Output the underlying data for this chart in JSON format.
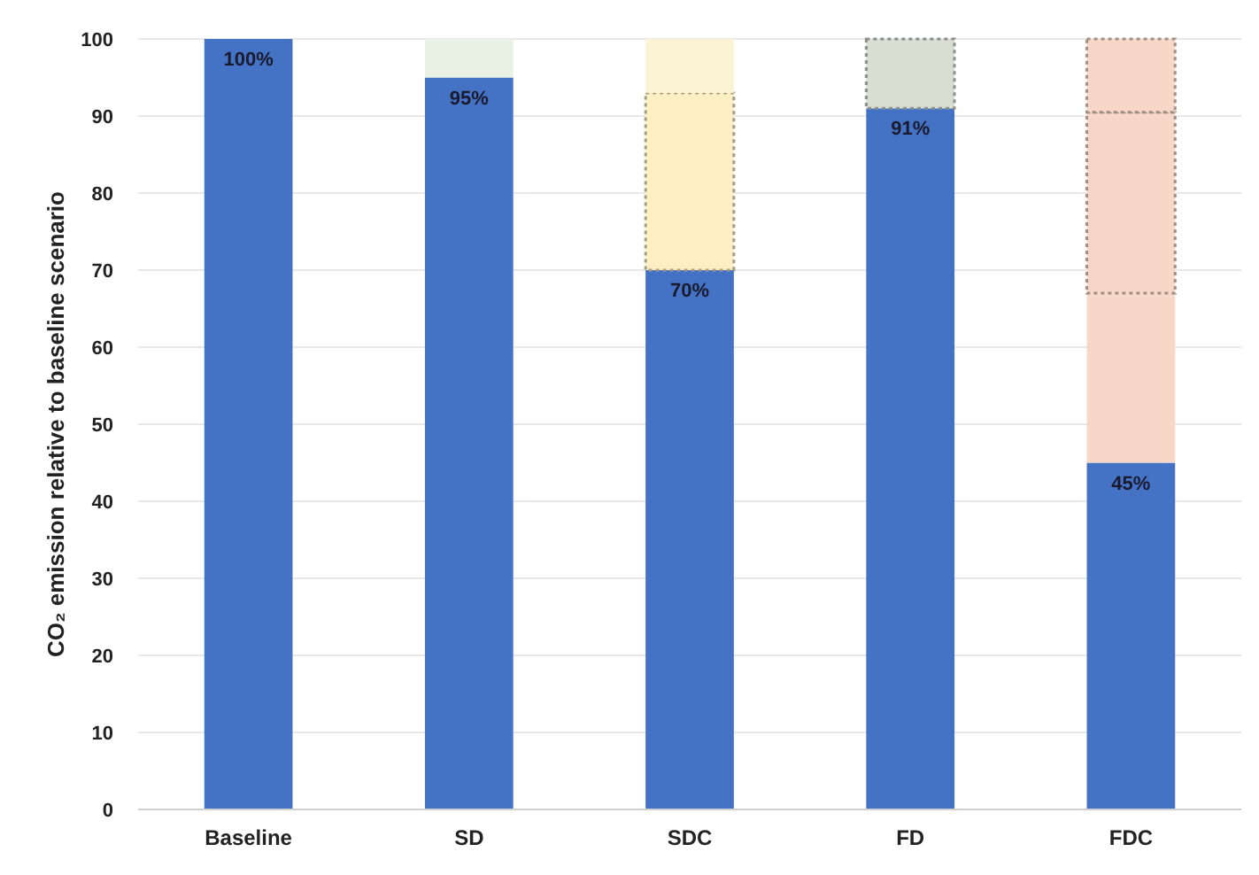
{
  "chart_data": {
    "type": "bar",
    "stacked": true,
    "ylabel": "CO₂ emission relative to baseline scenario",
    "categories": [
      "Baseline",
      "SD",
      "SDC",
      "FD",
      "FDC"
    ],
    "ylim": [
      0,
      100
    ],
    "yticks": [
      0,
      10,
      20,
      30,
      40,
      50,
      60,
      70,
      80,
      90,
      100
    ],
    "grid": "y",
    "series": [
      {
        "color": "#4472c4",
        "values": [
          100,
          95,
          70,
          91,
          45
        ],
        "value_labels": [
          "100%",
          "95%",
          "70%",
          "91%",
          "45%"
        ]
      },
      {
        "colors": [
          null,
          null,
          null,
          null,
          "#f7d8c8"
        ],
        "values": [
          null,
          null,
          null,
          null,
          22
        ]
      },
      {
        "colors": [
          null,
          null,
          "#fcefc4",
          null,
          "#f7d8c8"
        ],
        "values": [
          null,
          null,
          23,
          null,
          23.5
        ],
        "line_style": "dotted"
      },
      {
        "colors": [
          null,
          null,
          null,
          "#d9ddd2",
          "#f7d8c8"
        ],
        "values": [
          null,
          null,
          null,
          9,
          9.5
        ],
        "line_style": "dotted"
      },
      {
        "colors": [
          null,
          "#e8f1e4",
          "#fcf3d4",
          null,
          null
        ],
        "values": [
          null,
          5,
          7,
          null,
          null
        ]
      }
    ]
  }
}
